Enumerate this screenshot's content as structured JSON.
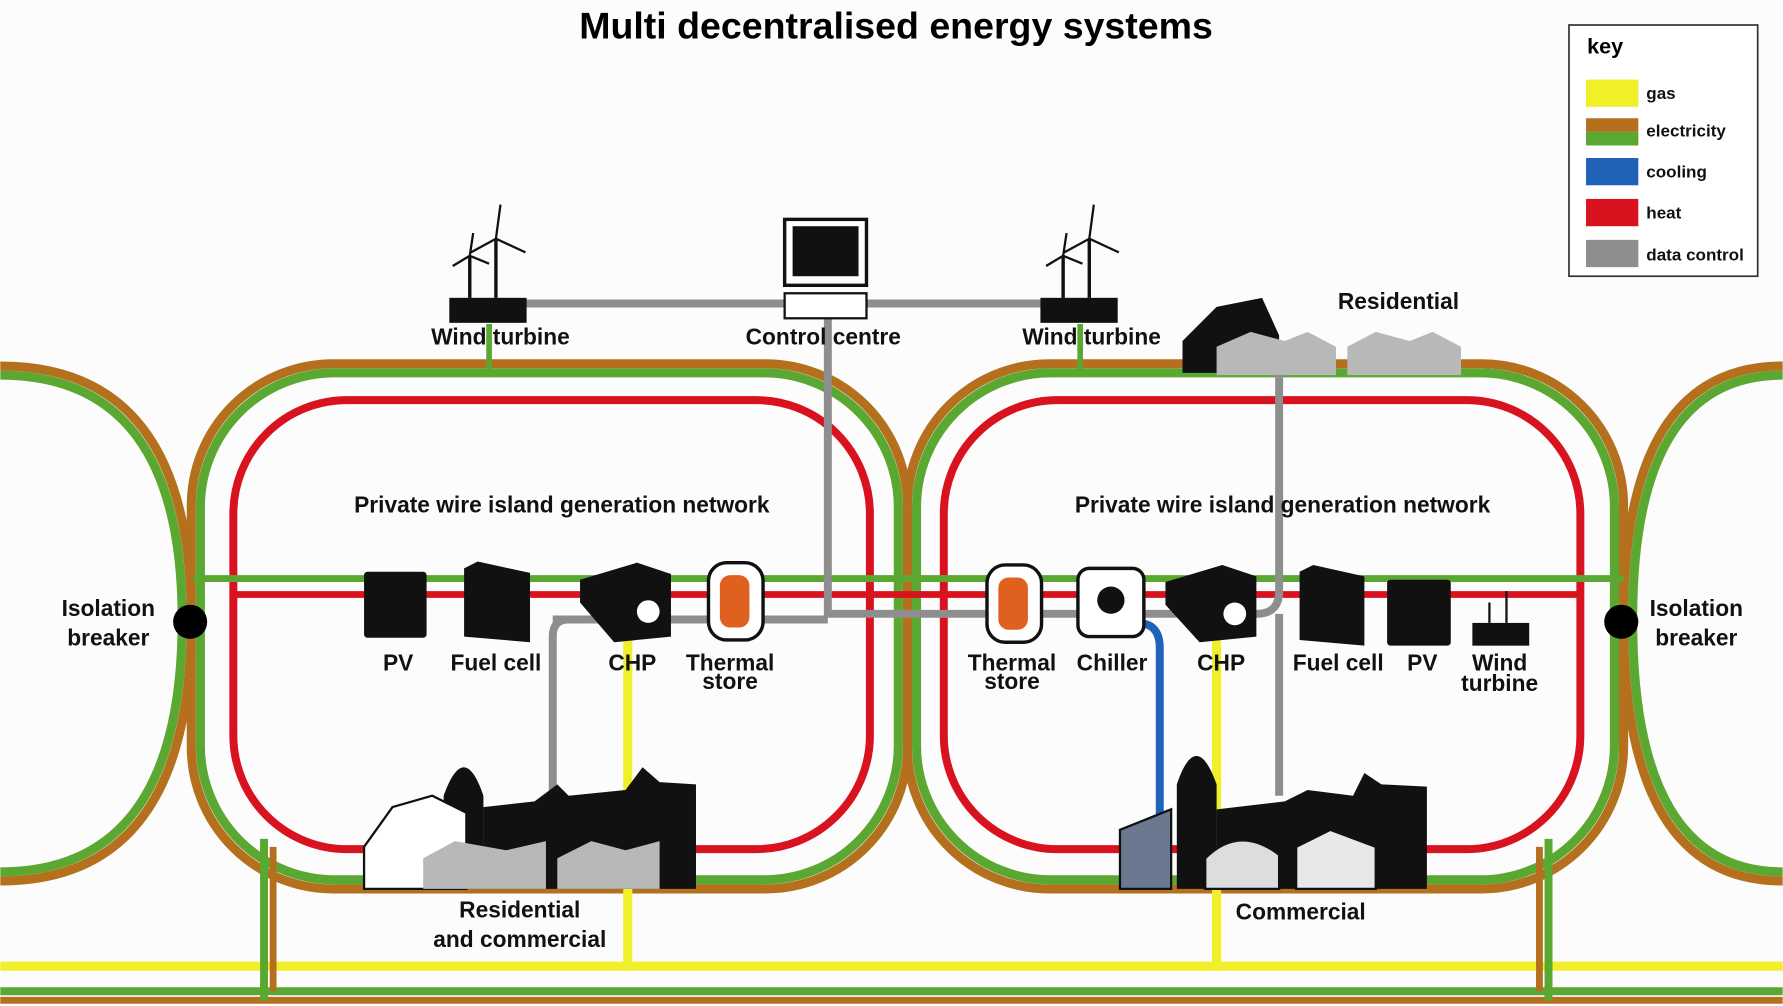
{
  "title": "Multi decentralised energy systems",
  "key": {
    "title": "key",
    "items": [
      {
        "label": "gas"
      },
      {
        "label": "electricity"
      },
      {
        "label": "cooling"
      },
      {
        "label": "heat"
      },
      {
        "label": "data control"
      }
    ]
  },
  "labels": [
    {
      "lines": [
        "Wind turbine"
      ]
    },
    {
      "lines": [
        "Control centre"
      ]
    },
    {
      "lines": [
        "Wind turbine"
      ]
    },
    {
      "lines": [
        "Residential"
      ]
    },
    {
      "lines": [
        "Private wire island generation network"
      ]
    },
    {
      "lines": [
        "Private wire island generation network"
      ]
    },
    {
      "lines": [
        "Isolation",
        "breaker"
      ]
    },
    {
      "lines": [
        "PV"
      ]
    },
    {
      "lines": [
        "Fuel cell"
      ]
    },
    {
      "lines": [
        "CHP"
      ]
    },
    {
      "lines": [
        "Thermal",
        "store"
      ]
    },
    {
      "lines": [
        "Thermal",
        "store"
      ]
    },
    {
      "lines": [
        "Chiller"
      ]
    },
    {
      "lines": [
        "CHP"
      ]
    },
    {
      "lines": [
        "Fuel cell"
      ]
    },
    {
      "lines": [
        "PV"
      ]
    },
    {
      "lines": [
        "Wind",
        "turbine"
      ]
    },
    {
      "lines": [
        "Isolation",
        "breaker"
      ]
    },
    {
      "lines": [
        "Residential",
        "and commercial"
      ]
    },
    {
      "lines": [
        "Commercial"
      ]
    }
  ]
}
